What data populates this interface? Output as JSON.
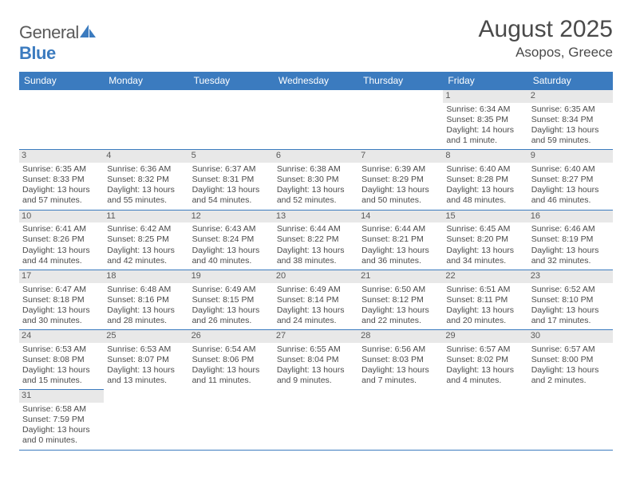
{
  "logo": {
    "text_general": "General",
    "text_blue": "Blue"
  },
  "header": {
    "title": "August 2025",
    "location": "Asopos, Greece"
  },
  "colors": {
    "accent": "#3b7bbf",
    "header_bg": "#3b7bbf",
    "header_text": "#ffffff",
    "daynum_bg": "#e8e8e8",
    "body_text": "#4a4a4a",
    "page_bg": "#ffffff"
  },
  "dayheads": [
    "Sunday",
    "Monday",
    "Tuesday",
    "Wednesday",
    "Thursday",
    "Friday",
    "Saturday"
  ],
  "layout": {
    "columns": 7,
    "rows": 6,
    "leading_blanks": 5
  },
  "days": [
    {
      "n": "1",
      "sunrise": "Sunrise: 6:34 AM",
      "sunset": "Sunset: 8:35 PM",
      "daylight": "Daylight: 14 hours and 1 minute."
    },
    {
      "n": "2",
      "sunrise": "Sunrise: 6:35 AM",
      "sunset": "Sunset: 8:34 PM",
      "daylight": "Daylight: 13 hours and 59 minutes."
    },
    {
      "n": "3",
      "sunrise": "Sunrise: 6:35 AM",
      "sunset": "Sunset: 8:33 PM",
      "daylight": "Daylight: 13 hours and 57 minutes."
    },
    {
      "n": "4",
      "sunrise": "Sunrise: 6:36 AM",
      "sunset": "Sunset: 8:32 PM",
      "daylight": "Daylight: 13 hours and 55 minutes."
    },
    {
      "n": "5",
      "sunrise": "Sunrise: 6:37 AM",
      "sunset": "Sunset: 8:31 PM",
      "daylight": "Daylight: 13 hours and 54 minutes."
    },
    {
      "n": "6",
      "sunrise": "Sunrise: 6:38 AM",
      "sunset": "Sunset: 8:30 PM",
      "daylight": "Daylight: 13 hours and 52 minutes."
    },
    {
      "n": "7",
      "sunrise": "Sunrise: 6:39 AM",
      "sunset": "Sunset: 8:29 PM",
      "daylight": "Daylight: 13 hours and 50 minutes."
    },
    {
      "n": "8",
      "sunrise": "Sunrise: 6:40 AM",
      "sunset": "Sunset: 8:28 PM",
      "daylight": "Daylight: 13 hours and 48 minutes."
    },
    {
      "n": "9",
      "sunrise": "Sunrise: 6:40 AM",
      "sunset": "Sunset: 8:27 PM",
      "daylight": "Daylight: 13 hours and 46 minutes."
    },
    {
      "n": "10",
      "sunrise": "Sunrise: 6:41 AM",
      "sunset": "Sunset: 8:26 PM",
      "daylight": "Daylight: 13 hours and 44 minutes."
    },
    {
      "n": "11",
      "sunrise": "Sunrise: 6:42 AM",
      "sunset": "Sunset: 8:25 PM",
      "daylight": "Daylight: 13 hours and 42 minutes."
    },
    {
      "n": "12",
      "sunrise": "Sunrise: 6:43 AM",
      "sunset": "Sunset: 8:24 PM",
      "daylight": "Daylight: 13 hours and 40 minutes."
    },
    {
      "n": "13",
      "sunrise": "Sunrise: 6:44 AM",
      "sunset": "Sunset: 8:22 PM",
      "daylight": "Daylight: 13 hours and 38 minutes."
    },
    {
      "n": "14",
      "sunrise": "Sunrise: 6:44 AM",
      "sunset": "Sunset: 8:21 PM",
      "daylight": "Daylight: 13 hours and 36 minutes."
    },
    {
      "n": "15",
      "sunrise": "Sunrise: 6:45 AM",
      "sunset": "Sunset: 8:20 PM",
      "daylight": "Daylight: 13 hours and 34 minutes."
    },
    {
      "n": "16",
      "sunrise": "Sunrise: 6:46 AM",
      "sunset": "Sunset: 8:19 PM",
      "daylight": "Daylight: 13 hours and 32 minutes."
    },
    {
      "n": "17",
      "sunrise": "Sunrise: 6:47 AM",
      "sunset": "Sunset: 8:18 PM",
      "daylight": "Daylight: 13 hours and 30 minutes."
    },
    {
      "n": "18",
      "sunrise": "Sunrise: 6:48 AM",
      "sunset": "Sunset: 8:16 PM",
      "daylight": "Daylight: 13 hours and 28 minutes."
    },
    {
      "n": "19",
      "sunrise": "Sunrise: 6:49 AM",
      "sunset": "Sunset: 8:15 PM",
      "daylight": "Daylight: 13 hours and 26 minutes."
    },
    {
      "n": "20",
      "sunrise": "Sunrise: 6:49 AM",
      "sunset": "Sunset: 8:14 PM",
      "daylight": "Daylight: 13 hours and 24 minutes."
    },
    {
      "n": "21",
      "sunrise": "Sunrise: 6:50 AM",
      "sunset": "Sunset: 8:12 PM",
      "daylight": "Daylight: 13 hours and 22 minutes."
    },
    {
      "n": "22",
      "sunrise": "Sunrise: 6:51 AM",
      "sunset": "Sunset: 8:11 PM",
      "daylight": "Daylight: 13 hours and 20 minutes."
    },
    {
      "n": "23",
      "sunrise": "Sunrise: 6:52 AM",
      "sunset": "Sunset: 8:10 PM",
      "daylight": "Daylight: 13 hours and 17 minutes."
    },
    {
      "n": "24",
      "sunrise": "Sunrise: 6:53 AM",
      "sunset": "Sunset: 8:08 PM",
      "daylight": "Daylight: 13 hours and 15 minutes."
    },
    {
      "n": "25",
      "sunrise": "Sunrise: 6:53 AM",
      "sunset": "Sunset: 8:07 PM",
      "daylight": "Daylight: 13 hours and 13 minutes."
    },
    {
      "n": "26",
      "sunrise": "Sunrise: 6:54 AM",
      "sunset": "Sunset: 8:06 PM",
      "daylight": "Daylight: 13 hours and 11 minutes."
    },
    {
      "n": "27",
      "sunrise": "Sunrise: 6:55 AM",
      "sunset": "Sunset: 8:04 PM",
      "daylight": "Daylight: 13 hours and 9 minutes."
    },
    {
      "n": "28",
      "sunrise": "Sunrise: 6:56 AM",
      "sunset": "Sunset: 8:03 PM",
      "daylight": "Daylight: 13 hours and 7 minutes."
    },
    {
      "n": "29",
      "sunrise": "Sunrise: 6:57 AM",
      "sunset": "Sunset: 8:02 PM",
      "daylight": "Daylight: 13 hours and 4 minutes."
    },
    {
      "n": "30",
      "sunrise": "Sunrise: 6:57 AM",
      "sunset": "Sunset: 8:00 PM",
      "daylight": "Daylight: 13 hours and 2 minutes."
    },
    {
      "n": "31",
      "sunrise": "Sunrise: 6:58 AM",
      "sunset": "Sunset: 7:59 PM",
      "daylight": "Daylight: 13 hours and 0 minutes."
    }
  ]
}
